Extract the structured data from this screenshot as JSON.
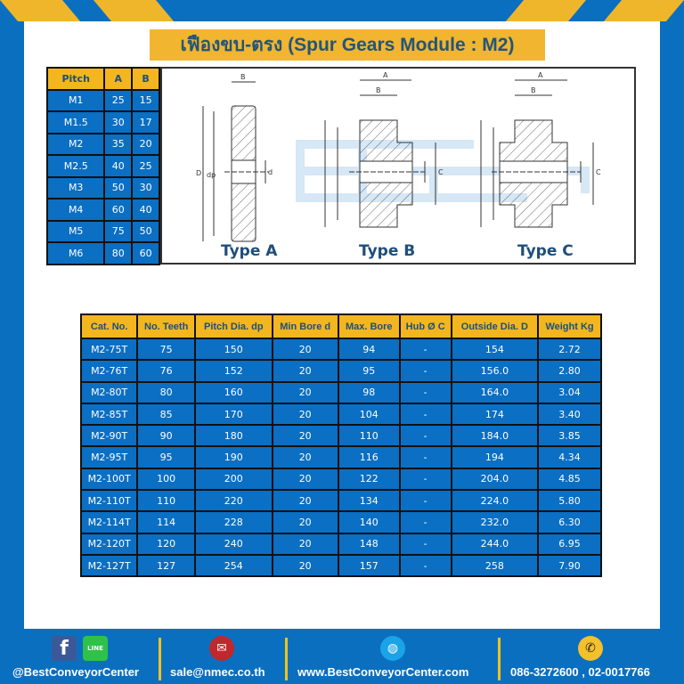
{
  "title": "เฟืองขบ-ตรง (Spur Gears Module : M2)",
  "pitch_table": {
    "headers": [
      "Pitch",
      "A",
      "B"
    ],
    "rows": [
      [
        "M1",
        "25",
        "15"
      ],
      [
        "M1.5",
        "30",
        "17"
      ],
      [
        "M2",
        "35",
        "20"
      ],
      [
        "M2.5",
        "40",
        "25"
      ],
      [
        "M3",
        "50",
        "30"
      ],
      [
        "M4",
        "60",
        "40"
      ],
      [
        "M5",
        "75",
        "50"
      ],
      [
        "M6",
        "80",
        "60"
      ]
    ]
  },
  "diagram": {
    "types": [
      "Type A",
      "Type B",
      "Type C"
    ],
    "dim_labels": {
      "A": "A",
      "B": "B",
      "C": "C",
      "D": "D",
      "dp": "dp",
      "d": "d"
    },
    "watermark": "BEST CONVEYOR CENTER"
  },
  "spec_table": {
    "headers": [
      "Cat. No.",
      "No. Teeth",
      "Pitch Dia. dp",
      "Min Bore d",
      "Max. Bore",
      "Hub Ø C",
      "Outside Dia. D",
      "Weight Kg"
    ],
    "rows": [
      [
        "M2-75T",
        "75",
        "150",
        "20",
        "94",
        "-",
        "154",
        "2.72"
      ],
      [
        "M2-76T",
        "76",
        "152",
        "20",
        "95",
        "-",
        "156.0",
        "2.80"
      ],
      [
        "M2-80T",
        "80",
        "160",
        "20",
        "98",
        "-",
        "164.0",
        "3.04"
      ],
      [
        "M2-85T",
        "85",
        "170",
        "20",
        "104",
        "-",
        "174",
        "3.40"
      ],
      [
        "M2-90T",
        "90",
        "180",
        "20",
        "110",
        "-",
        "184.0",
        "3.85"
      ],
      [
        "M2-95T",
        "95",
        "190",
        "20",
        "116",
        "-",
        "194",
        "4.34"
      ],
      [
        "M2-100T",
        "100",
        "200",
        "20",
        "122",
        "-",
        "204.0",
        "4.85"
      ],
      [
        "M2-110T",
        "110",
        "220",
        "20",
        "134",
        "-",
        "224.0",
        "5.80"
      ],
      [
        "M2-114T",
        "114",
        "228",
        "20",
        "140",
        "-",
        "232.0",
        "6.30"
      ],
      [
        "M2-120T",
        "120",
        "240",
        "20",
        "148",
        "-",
        "244.0",
        "6.95"
      ],
      [
        "M2-127T",
        "127",
        "254",
        "20",
        "157",
        "-",
        "258",
        "7.90"
      ]
    ]
  },
  "footer": {
    "social": "@BestConveyorCenter",
    "line_badge": "LINE",
    "email": "sale@nmec.co.th",
    "website": "www.BestConveyorCenter.com",
    "phone": "086-3272600 , 02-0017766"
  },
  "colors": {
    "brand_blue": "#0b6fbf",
    "accent_yellow": "#f1b52f",
    "title_text": "#23557a"
  }
}
